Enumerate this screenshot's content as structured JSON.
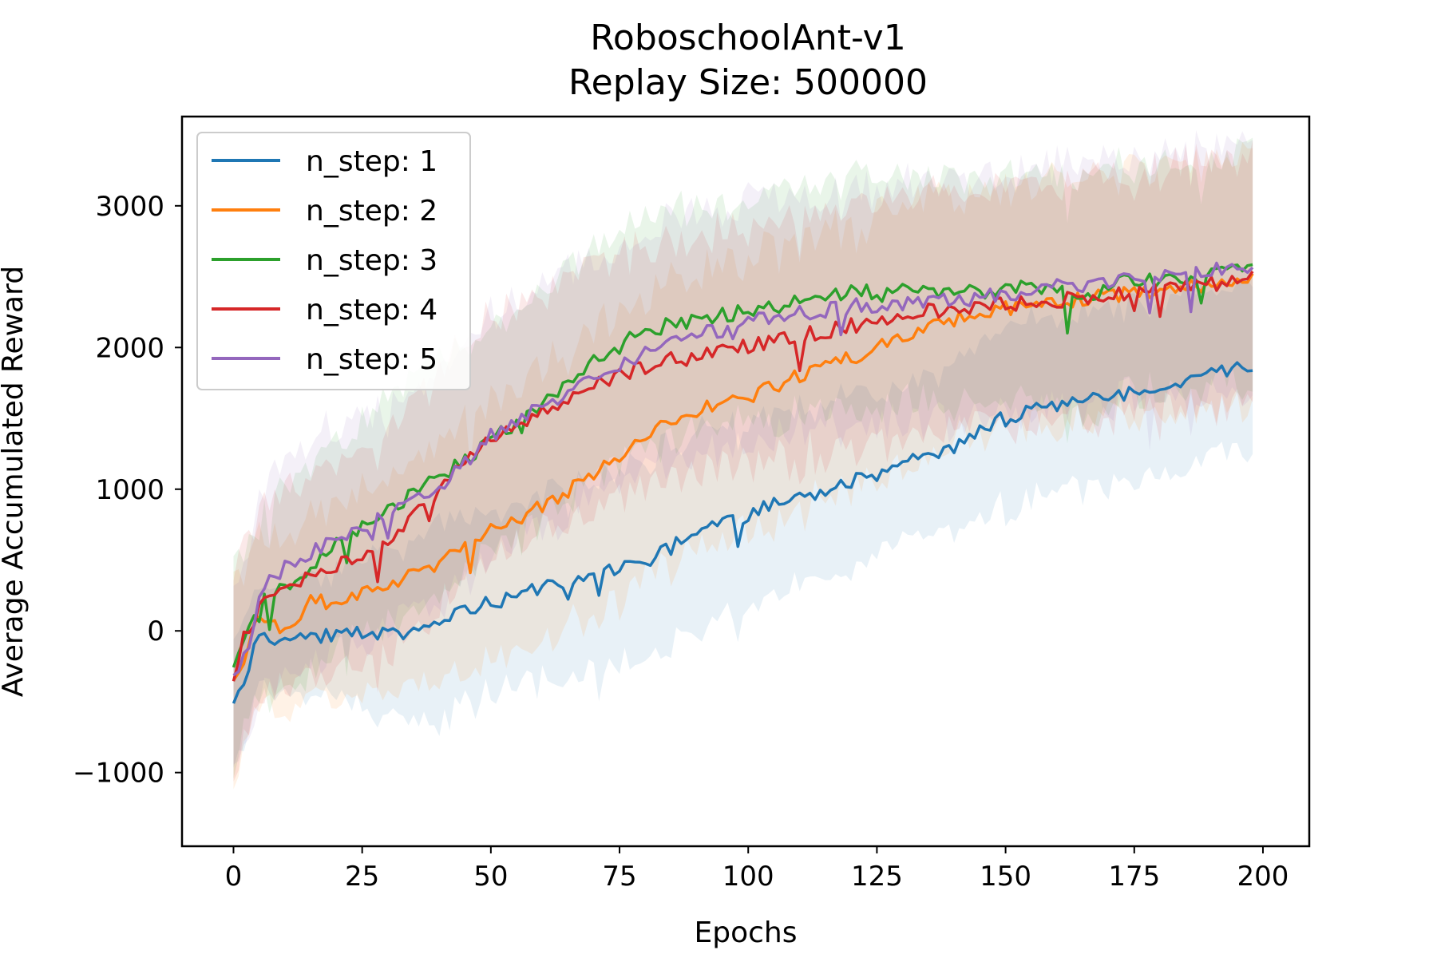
{
  "chart_data": {
    "type": "line",
    "title": "RoboschoolAnt-v1",
    "subtitle": "Replay Size: 500000",
    "xlabel": "Epochs",
    "ylabel": "Average Accumulated Reward",
    "xlim": [
      -10,
      209
    ],
    "ylim": [
      -1520,
      3630
    ],
    "xticks": [
      0,
      25,
      50,
      75,
      100,
      125,
      150,
      175,
      200
    ],
    "yticks": [
      -1000,
      0,
      1000,
      2000,
      3000
    ],
    "ytick_labels": [
      "−1000",
      "0",
      "1000",
      "2000",
      "3000"
    ],
    "grid": false,
    "legend_position": "upper-left",
    "series": [
      {
        "name": "n_step: 1",
        "color": "#1f77b4",
        "anchors": [
          [
            0,
            -550
          ],
          [
            5,
            -20
          ],
          [
            10,
            -60
          ],
          [
            20,
            -20
          ],
          [
            30,
            -30
          ],
          [
            40,
            60
          ],
          [
            50,
            200
          ],
          [
            60,
            300
          ],
          [
            70,
            400
          ],
          [
            80,
            480
          ],
          [
            90,
            700
          ],
          [
            100,
            820
          ],
          [
            110,
            950
          ],
          [
            120,
            1050
          ],
          [
            130,
            1180
          ],
          [
            140,
            1300
          ],
          [
            145,
            1430
          ],
          [
            150,
            1500
          ],
          [
            160,
            1600
          ],
          [
            170,
            1650
          ],
          [
            180,
            1720
          ],
          [
            190,
            1830
          ],
          [
            198,
            1860
          ]
        ],
        "band": [
          500,
          300,
          400,
          450,
          580,
          700,
          650,
          650,
          680,
          720,
          700,
          640,
          620,
          600,
          560,
          560,
          600,
          650,
          650,
          620,
          600,
          600,
          650
        ]
      },
      {
        "name": "n_step: 2",
        "color": "#ff7f0e",
        "anchors": [
          [
            0,
            -380
          ],
          [
            2,
            -200
          ],
          [
            5,
            120
          ],
          [
            10,
            0
          ],
          [
            15,
            200
          ],
          [
            20,
            200
          ],
          [
            30,
            340
          ],
          [
            40,
            480
          ],
          [
            50,
            700
          ],
          [
            60,
            880
          ],
          [
            70,
            1100
          ],
          [
            80,
            1380
          ],
          [
            90,
            1560
          ],
          [
            100,
            1650
          ],
          [
            110,
            1800
          ],
          [
            120,
            1930
          ],
          [
            130,
            2080
          ],
          [
            140,
            2200
          ],
          [
            150,
            2270
          ],
          [
            160,
            2330
          ],
          [
            170,
            2360
          ],
          [
            180,
            2400
          ],
          [
            190,
            2450
          ],
          [
            198,
            2470
          ]
        ],
        "band": [
          700,
          600,
          600,
          600,
          650,
          700,
          750,
          800,
          900,
          950,
          1000,
          1000,
          1000,
          950,
          950,
          900,
          900,
          850,
          850,
          850,
          850,
          850,
          850,
          900
        ]
      },
      {
        "name": "n_step: 3",
        "color": "#2ca02c",
        "anchors": [
          [
            0,
            -280
          ],
          [
            2,
            -100
          ],
          [
            5,
            280
          ],
          [
            10,
            300
          ],
          [
            20,
            600
          ],
          [
            30,
            850
          ],
          [
            40,
            1080
          ],
          [
            50,
            1350
          ],
          [
            60,
            1580
          ],
          [
            70,
            1900
          ],
          [
            80,
            2120
          ],
          [
            90,
            2200
          ],
          [
            100,
            2260
          ],
          [
            110,
            2330
          ],
          [
            120,
            2390
          ],
          [
            130,
            2400
          ],
          [
            140,
            2380
          ],
          [
            150,
            2410
          ],
          [
            160,
            2430
          ],
          [
            165,
            2300
          ],
          [
            170,
            2450
          ],
          [
            180,
            2480
          ],
          [
            190,
            2520
          ],
          [
            198,
            2550
          ]
        ],
        "band": [
          700,
          600,
          650,
          700,
          750,
          800,
          800,
          800,
          800,
          800,
          800,
          800,
          800,
          800,
          800,
          800,
          800,
          800,
          800,
          800,
          800,
          800,
          800,
          800
        ]
      },
      {
        "name": "n_step: 4",
        "color": "#d62728",
        "anchors": [
          [
            0,
            -370
          ],
          [
            2,
            -50
          ],
          [
            5,
            150
          ],
          [
            10,
            320
          ],
          [
            20,
            450
          ],
          [
            30,
            620
          ],
          [
            40,
            1000
          ],
          [
            50,
            1380
          ],
          [
            60,
            1530
          ],
          [
            70,
            1720
          ],
          [
            80,
            1880
          ],
          [
            90,
            1960
          ],
          [
            100,
            2010
          ],
          [
            110,
            2080
          ],
          [
            120,
            2150
          ],
          [
            130,
            2230
          ],
          [
            140,
            2280
          ],
          [
            150,
            2300
          ],
          [
            160,
            2330
          ],
          [
            170,
            2370
          ],
          [
            180,
            2420
          ],
          [
            190,
            2450
          ],
          [
            198,
            2500
          ]
        ],
        "band": [
          700,
          650,
          650,
          700,
          750,
          800,
          850,
          850,
          850,
          850,
          850,
          850,
          850,
          850,
          850,
          850,
          850,
          850,
          850,
          850,
          850,
          850,
          850
        ]
      },
      {
        "name": "n_step: 5",
        "color": "#9467bd",
        "anchors": [
          [
            0,
            -320
          ],
          [
            3,
            -100
          ],
          [
            5,
            280
          ],
          [
            10,
            450
          ],
          [
            20,
            650
          ],
          [
            30,
            830
          ],
          [
            40,
            1000
          ],
          [
            50,
            1370
          ],
          [
            60,
            1580
          ],
          [
            70,
            1820
          ],
          [
            80,
            1950
          ],
          [
            90,
            2080
          ],
          [
            100,
            2180
          ],
          [
            110,
            2240
          ],
          [
            120,
            2290
          ],
          [
            130,
            2310
          ],
          [
            140,
            2330
          ],
          [
            150,
            2380
          ],
          [
            160,
            2430
          ],
          [
            170,
            2460
          ],
          [
            180,
            2490
          ],
          [
            190,
            2540
          ],
          [
            198,
            2560
          ]
        ],
        "band": [
          700,
          650,
          700,
          750,
          800,
          800,
          800,
          850,
          850,
          850,
          850,
          850,
          850,
          850,
          850,
          850,
          850,
          850,
          850,
          850,
          850,
          850,
          850
        ]
      }
    ]
  }
}
